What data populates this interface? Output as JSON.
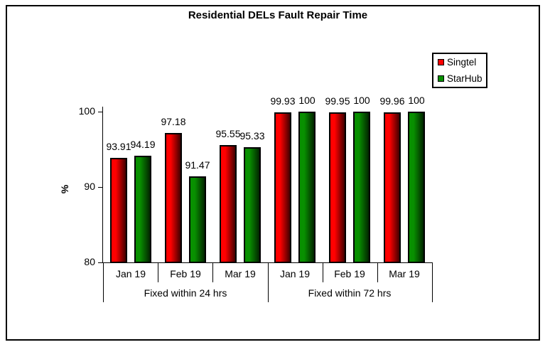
{
  "chart_data": {
    "type": "bar",
    "title": "Residential DELs Fault Repair Time",
    "ylabel": "%",
    "ylim": [
      80,
      100
    ],
    "yticks": [
      80,
      90,
      100
    ],
    "categories": [
      "Jan 19",
      "Feb 19",
      "Mar 19",
      "Jan 19",
      "Feb 19",
      "Mar 19"
    ],
    "group_labels": [
      "Fixed within 24 hrs",
      "Fixed within 72 hrs"
    ],
    "series": [
      {
        "name": "Singtel",
        "color": "#ff0000",
        "values": [
          93.91,
          97.18,
          95.55,
          99.93,
          99.95,
          99.96
        ]
      },
      {
        "name": "StarHub",
        "color": "#089000",
        "values": [
          94.19,
          91.47,
          95.33,
          100,
          100,
          100
        ]
      }
    ],
    "legend_position": "top-right",
    "grid": false,
    "axis_color": "#000000",
    "background_color": "#ffffff"
  }
}
